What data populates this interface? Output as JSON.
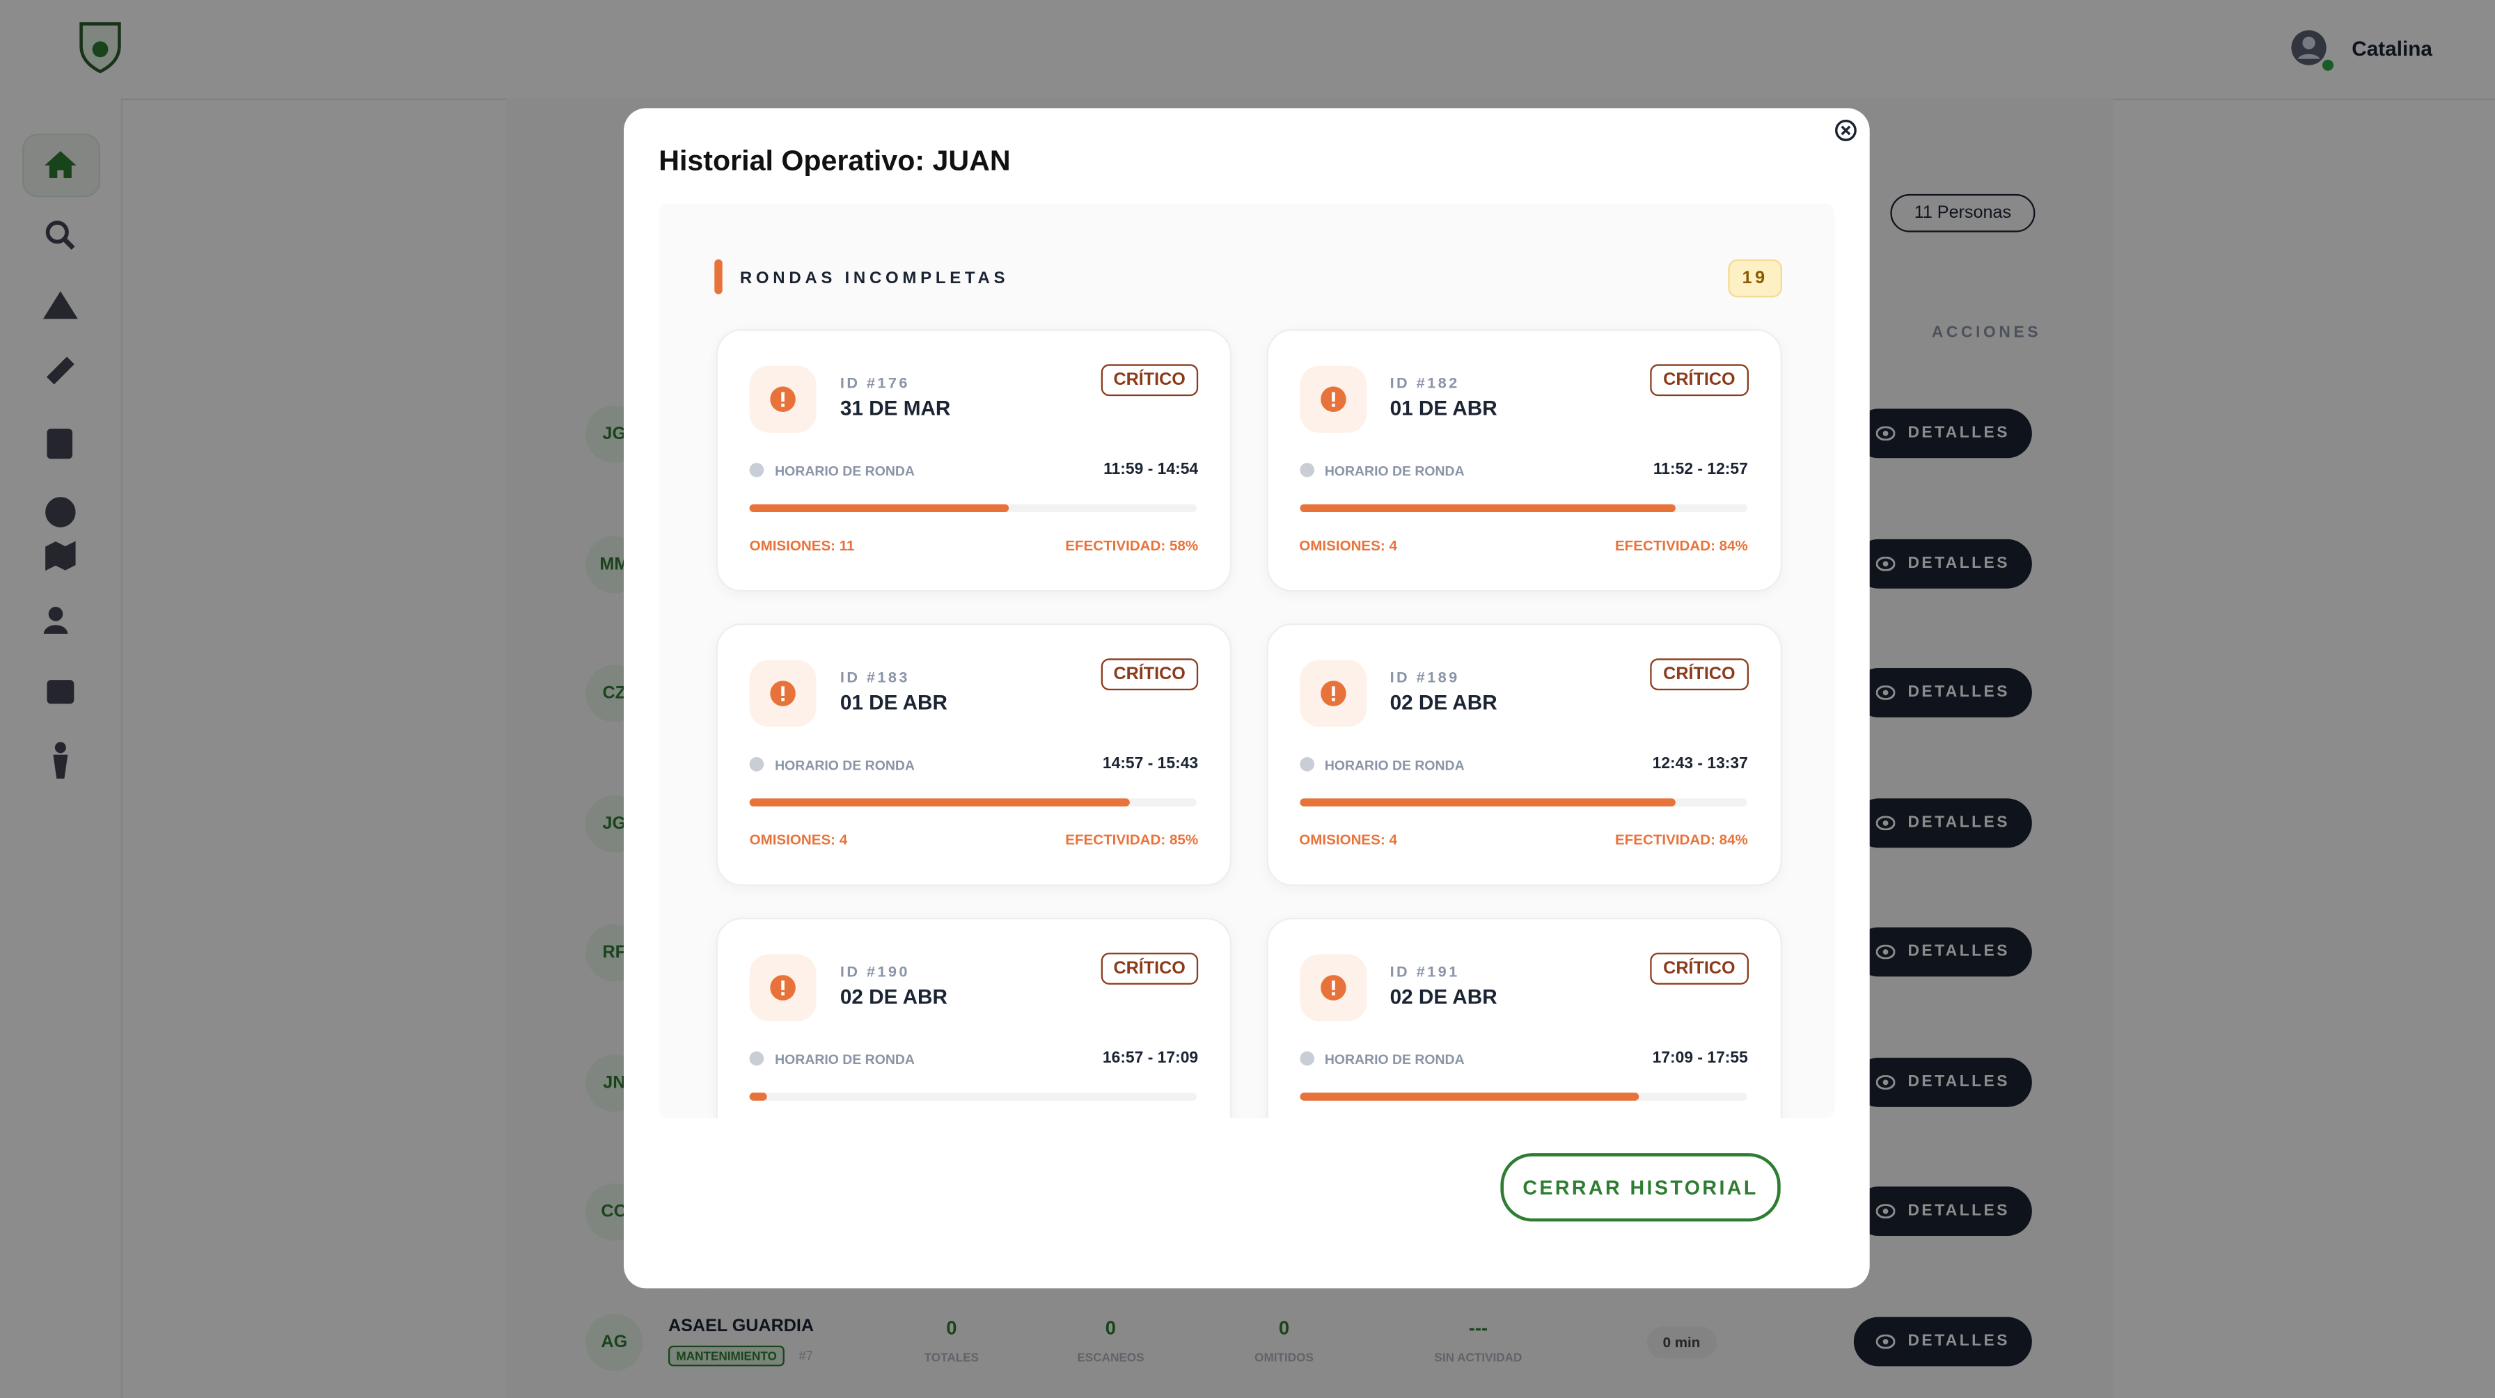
{
  "header": {
    "user": "Catalina"
  },
  "page": {
    "count_badge": "11 Personas",
    "actions_header": "ACCIONES",
    "rows": [
      {
        "initials": "JG",
        "action": "DETALLES"
      },
      {
        "initials": "MM",
        "action": "DETALLES"
      },
      {
        "initials": "CZ",
        "action": "DETALLES"
      },
      {
        "initials": "JG",
        "action": "DETALLES"
      },
      {
        "initials": "RF",
        "action": "DETALLES"
      },
      {
        "initials": "JN",
        "action": "DETALLES"
      },
      {
        "initials": "CO",
        "action": "DETALLES"
      },
      {
        "initials": "AG",
        "action": "DETALLES"
      }
    ],
    "last_row": {
      "name": "ASAEL GUARDIA",
      "role": "MANTENIMIENTO",
      "number": "#7",
      "time": "0 min",
      "stats": [
        {
          "value": "0",
          "label": "TOTALES"
        },
        {
          "value": "0",
          "label": "ESCANEOS"
        },
        {
          "value": "0",
          "label": "OMITIDOS"
        },
        {
          "value": "---",
          "label": "SIN ACTIVIDAD"
        }
      ]
    }
  },
  "modal": {
    "title": "Historial Operativo: JUAN",
    "section": "RONDAS INCOMPLETAS",
    "section_count": 19,
    "close_button": "CERRAR HISTORIAL",
    "cards": [
      {
        "id": "ID #176",
        "date": "31 DE MAR",
        "status": "CRÍTICO",
        "schedule_label": "HORARIO DE RONDA",
        "schedule": "11:59 - 14:54",
        "progress": 58,
        "omissions": "OMISIONES: 11",
        "effectiveness": "EFECTIVIDAD: 58%"
      },
      {
        "id": "ID #182",
        "date": "01 DE ABR",
        "status": "CRÍTICO",
        "schedule_label": "HORARIO DE RONDA",
        "schedule": "11:52 - 12:57",
        "progress": 84,
        "omissions": "OMISIONES: 4",
        "effectiveness": "EFECTIVIDAD: 84%"
      },
      {
        "id": "ID #183",
        "date": "01 DE ABR",
        "status": "CRÍTICO",
        "schedule_label": "HORARIO DE RONDA",
        "schedule": "14:57 - 15:43",
        "progress": 85,
        "omissions": "OMISIONES: 4",
        "effectiveness": "EFECTIVIDAD: 85%"
      },
      {
        "id": "ID #189",
        "date": "02 DE ABR",
        "status": "CRÍTICO",
        "schedule_label": "HORARIO DE RONDA",
        "schedule": "12:43 - 13:37",
        "progress": 84,
        "omissions": "OMISIONES: 4",
        "effectiveness": "EFECTIVIDAD: 84%"
      },
      {
        "id": "ID #190",
        "date": "02 DE ABR",
        "status": "CRÍTICO",
        "schedule_label": "HORARIO DE RONDA",
        "schedule": "16:57 - 17:09",
        "progress": 4
      },
      {
        "id": "ID #191",
        "date": "02 DE ABR",
        "status": "CRÍTICO",
        "schedule_label": "HORARIO DE RONDA",
        "schedule": "17:09 - 17:55",
        "progress": 76
      }
    ]
  }
}
